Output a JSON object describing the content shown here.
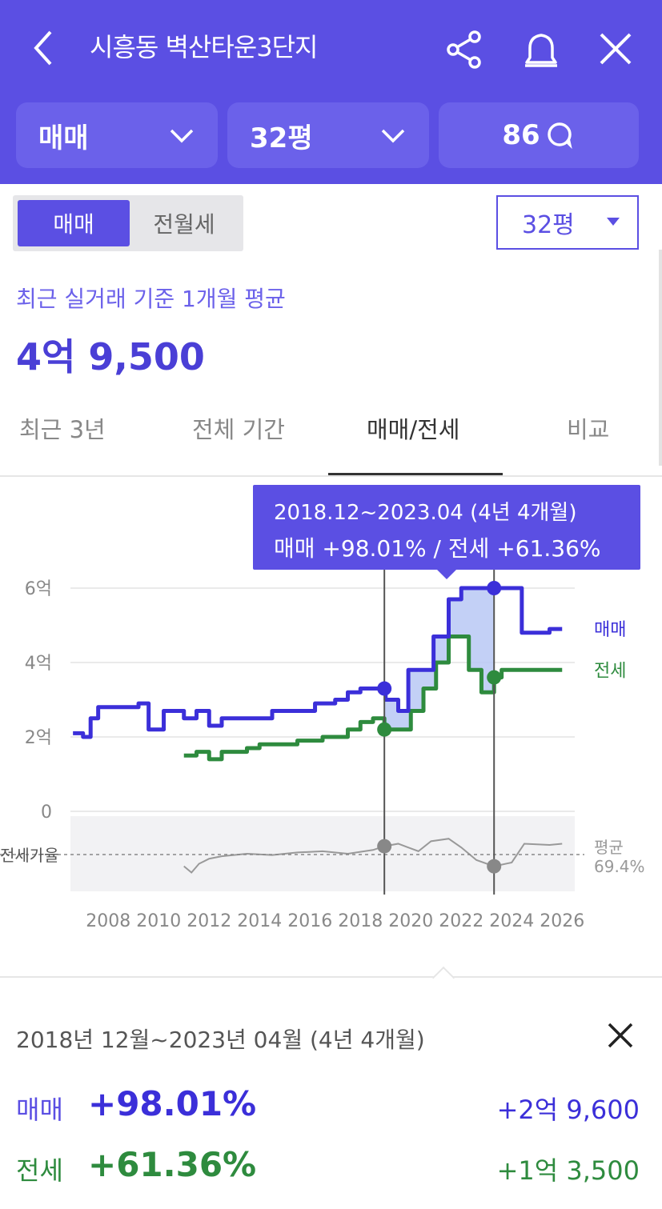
{
  "header": {
    "title": "시흥동 벽산타운3단지",
    "filters": [
      {
        "label": "매매"
      },
      {
        "label": "32평"
      },
      {
        "label": "86"
      }
    ]
  },
  "segment": {
    "active": "매매",
    "inactive": "전월세"
  },
  "size_select": {
    "value": "32평"
  },
  "summary": {
    "subtitle": "최근 실거래 기준 1개월 평균",
    "price": "4억 9,500"
  },
  "tabs": [
    "최근 3년",
    "전체 기간",
    "매매/전세",
    "비교"
  ],
  "active_tab": "매매/전세",
  "tooltip": {
    "line1": "2018.12~2023.04 (4년 4개월)",
    "line2": "매매 +98.01%  /  전세 +61.36%"
  },
  "colors": {
    "primary": "#5b4fe3",
    "sale": "#3b2fd9",
    "lease": "#2e8b3e",
    "fill": "#b9c8f5"
  },
  "chart_data": {
    "type": "line",
    "y_ticks": [
      "6억",
      "4억",
      "2억",
      "0"
    ],
    "ylim": [
      0,
      6
    ],
    "x_ticks": [
      "2008",
      "2010",
      "2012",
      "2014",
      "2016",
      "2018",
      "2020",
      "2022",
      "2024",
      "2026"
    ],
    "xlim": [
      2006.5,
      2026.5
    ],
    "selection": {
      "start": 2018.95,
      "end": 2023.3
    },
    "series": [
      {
        "name": "매매",
        "x": [
          2006.6,
          2007.0,
          2007.3,
          2007.6,
          2008.0,
          2008.5,
          2009.2,
          2009.6,
          2010.2,
          2010.5,
          2011.0,
          2011.5,
          2012.0,
          2012.5,
          2013.5,
          2014.5,
          2015.5,
          2016.2,
          2017.0,
          2017.5,
          2018.0,
          2018.7,
          2019.0,
          2019.5,
          2019.9,
          2020.3,
          2020.9,
          2021.2,
          2021.5,
          2022.0,
          2022.6,
          2023.3,
          2024.0,
          2024.4,
          2024.8,
          2025.5,
          2026.0
        ],
        "values": [
          2.1,
          2.0,
          2.5,
          2.8,
          2.8,
          2.8,
          2.9,
          2.2,
          2.7,
          2.7,
          2.5,
          2.7,
          2.3,
          2.5,
          2.5,
          2.7,
          2.7,
          2.9,
          3.0,
          3.2,
          3.3,
          3.3,
          3.0,
          2.7,
          3.8,
          3.8,
          4.7,
          4.7,
          5.7,
          6.0,
          6.0,
          6.0,
          6.0,
          4.8,
          4.8,
          4.9,
          4.9
        ]
      },
      {
        "name": "전세",
        "x": [
          2011.0,
          2011.5,
          2012.0,
          2012.5,
          2013.0,
          2013.5,
          2014.0,
          2014.5,
          2015.5,
          2016.5,
          2017.5,
          2018.0,
          2018.5,
          2018.95,
          2019.5,
          2020.0,
          2020.5,
          2021.0,
          2021.5,
          2022.0,
          2022.3,
          2022.8,
          2023.3,
          2023.6,
          2024.0,
          2025.0,
          2026.0
        ],
        "values": [
          1.5,
          1.6,
          1.4,
          1.6,
          1.6,
          1.7,
          1.8,
          1.8,
          1.9,
          2.0,
          2.2,
          2.4,
          2.5,
          2.2,
          2.2,
          2.7,
          3.3,
          4.0,
          4.7,
          4.7,
          3.8,
          3.2,
          3.6,
          3.8,
          3.8,
          3.8,
          3.8
        ]
      }
    ],
    "ratio": {
      "label": "전세가율",
      "avg_label": "평균",
      "avg_value": "69.4%",
      "x": [
        2011.0,
        2011.3,
        2011.6,
        2012.0,
        2012.5,
        2013.5,
        2014.5,
        2015.5,
        2016.5,
        2017.5,
        2018.5,
        2018.95,
        2019.5,
        2020.3,
        2020.8,
        2021.5,
        2022.0,
        2022.6,
        2023.3,
        2024.0,
        2024.5,
        2025.5,
        2026.0
      ],
      "values": [
        60,
        55,
        62,
        66,
        68,
        70,
        69,
        71,
        72,
        70,
        73,
        76,
        78,
        72,
        80,
        82,
        75,
        65,
        60,
        63,
        78,
        77,
        78
      ]
    }
  },
  "detail": {
    "period": "2018년 12월~2023년 04월 (4년 4개월)",
    "rows": [
      {
        "label": "매매",
        "pct": "+98.01%",
        "amount": "+2억 9,600"
      },
      {
        "label": "전세",
        "pct": "+61.36%",
        "amount": "+1억 3,500"
      }
    ]
  }
}
